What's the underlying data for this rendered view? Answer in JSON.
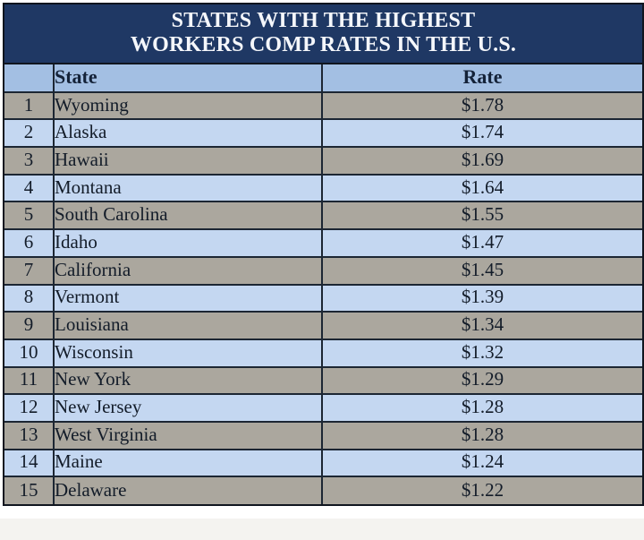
{
  "title": {
    "line1": "STATES WITH THE HIGHEST",
    "line2": "WORKERS COMP RATES IN THE U.S."
  },
  "header": {
    "rank_label": "",
    "state_label": "State",
    "rate_label": "Rate"
  },
  "chart_data": {
    "type": "table",
    "title": "STATES WITH THE HIGHEST WORKERS COMP RATES IN THE U.S.",
    "columns": [
      "",
      "State",
      "Rate"
    ],
    "rows": [
      {
        "rank": "1",
        "state": "Wyoming",
        "rate": "$1.78"
      },
      {
        "rank": "2",
        "state": "Alaska",
        "rate": "$1.74"
      },
      {
        "rank": "3",
        "state": "Hawaii",
        "rate": "$1.69"
      },
      {
        "rank": "4",
        "state": "Montana",
        "rate": "$1.64"
      },
      {
        "rank": "5",
        "state": "South Carolina",
        "rate": "$1.55"
      },
      {
        "rank": "6",
        "state": "Idaho",
        "rate": "$1.47"
      },
      {
        "rank": "7",
        "state": "California",
        "rate": "$1.45"
      },
      {
        "rank": "8",
        "state": "Vermont",
        "rate": "$1.39"
      },
      {
        "rank": "9",
        "state": "Louisiana",
        "rate": "$1.34"
      },
      {
        "rank": "10",
        "state": "Wisconsin",
        "rate": "$1.32"
      },
      {
        "rank": "11",
        "state": "New York",
        "rate": "$1.29"
      },
      {
        "rank": "12",
        "state": "New Jersey",
        "rate": "$1.28"
      },
      {
        "rank": "13",
        "state": "West Virginia",
        "rate": "$1.28"
      },
      {
        "rank": "14",
        "state": "Maine",
        "rate": "$1.24"
      },
      {
        "rank": "15",
        "state": "Delaware",
        "rate": "$1.22"
      }
    ],
    "rate_values": [
      1.78,
      1.74,
      1.69,
      1.64,
      1.55,
      1.47,
      1.45,
      1.39,
      1.34,
      1.32,
      1.29,
      1.28,
      1.28,
      1.24,
      1.22
    ]
  },
  "colors": {
    "title_background": "#1f3864",
    "title_text": "#f5f7fb",
    "header_row_background": "#a3bfe3",
    "row_blue": "#c4d7f1",
    "row_gray": "#aba79e",
    "border": "#1c2633",
    "body_text": "#131c29"
  }
}
